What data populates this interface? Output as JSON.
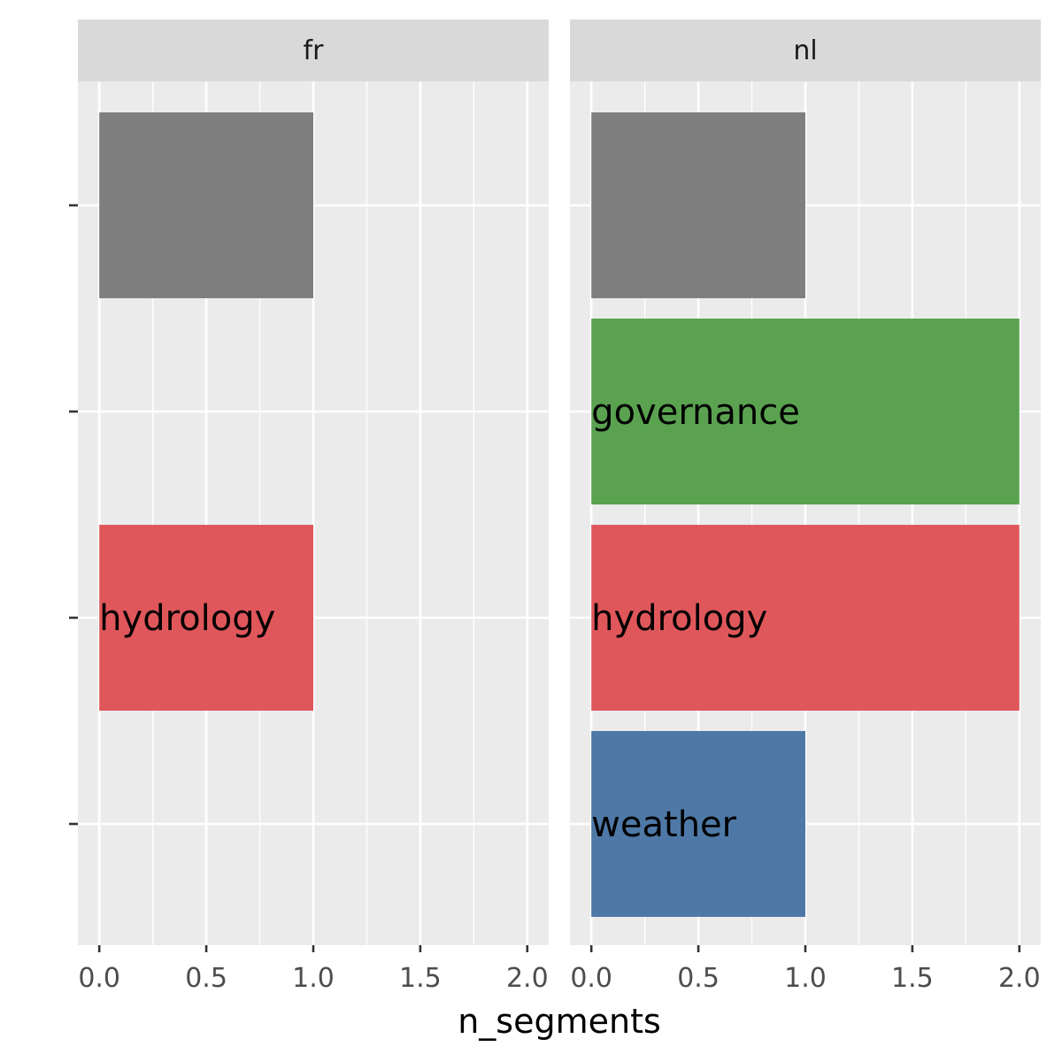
{
  "chart_data": {
    "type": "bar",
    "orientation": "horizontal",
    "xlabel": "n_segments",
    "ylabel": "",
    "xlim": [
      0,
      2
    ],
    "x_ticks": [
      "0.0",
      "0.5",
      "1.0",
      "1.5",
      "2.0"
    ],
    "x_tick_values": [
      0,
      0.5,
      1,
      1.5,
      2
    ],
    "y_tick_labels": [
      "",
      "",
      "",
      ""
    ],
    "grid": true,
    "legend": "none",
    "facets": [
      {
        "name": "fr",
        "bars": [
          {
            "row": 0,
            "value": 1,
            "label": "",
            "color": "#7f7f7f"
          },
          {
            "row": 2,
            "value": 1,
            "label": "hydrology",
            "color": "#e0575b"
          }
        ]
      },
      {
        "name": "nl",
        "bars": [
          {
            "row": 0,
            "value": 1,
            "label": "",
            "color": "#7f7f7f"
          },
          {
            "row": 1,
            "value": 2,
            "label": "governance",
            "color": "#5aa250"
          },
          {
            "row": 2,
            "value": 2,
            "label": "hydrology",
            "color": "#e0575b"
          },
          {
            "row": 3,
            "value": 1,
            "label": "weather",
            "color": "#4e79a7"
          }
        ]
      }
    ]
  }
}
